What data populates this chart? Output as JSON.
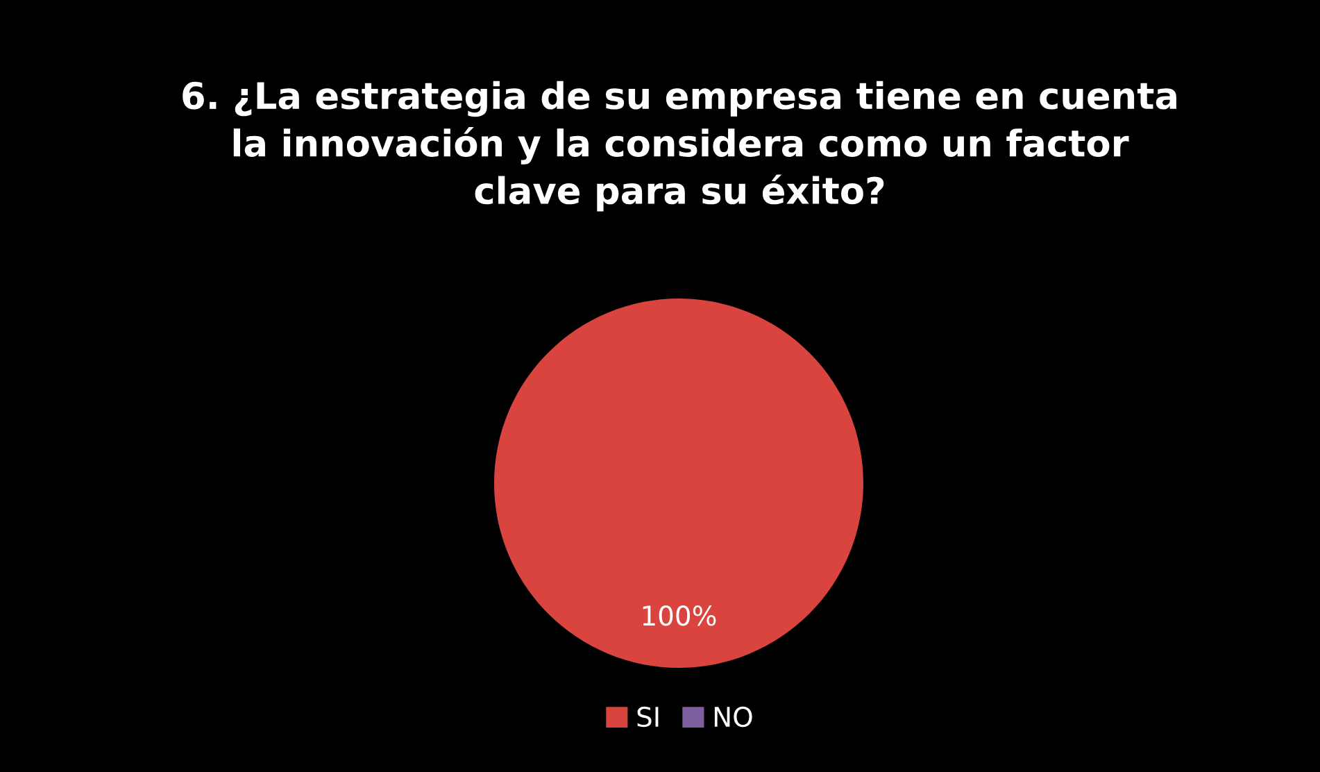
{
  "chart_data": {
    "type": "pie",
    "title": "6. ¿La estrategia de su empresa tiene en cuenta\nla innovación y la considera como un factor\nclave para su éxito?",
    "categories": [
      "SI",
      "NO"
    ],
    "values": [
      100,
      0
    ],
    "colors": [
      "#d9443f",
      "#7d60a0"
    ],
    "value_labels": [
      "100%",
      null
    ],
    "legend": "bottom"
  }
}
